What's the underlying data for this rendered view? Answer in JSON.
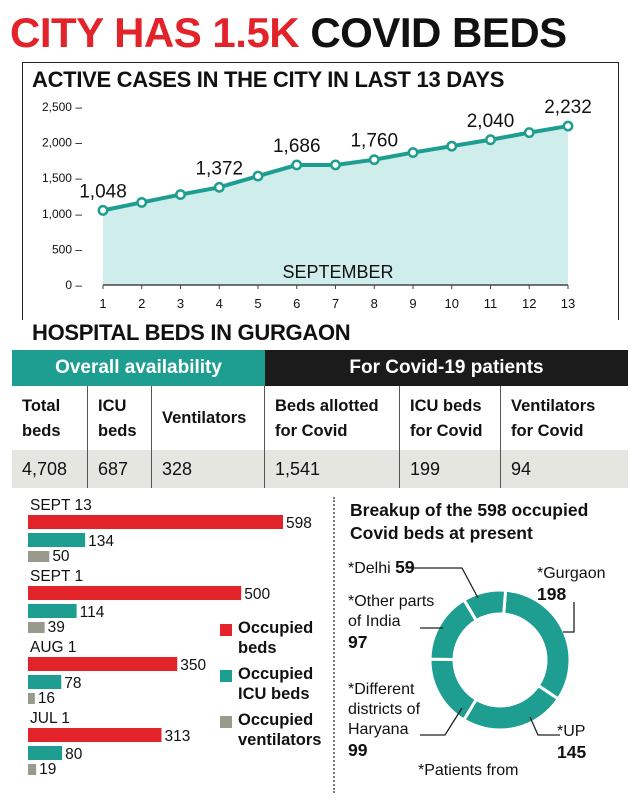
{
  "headline": {
    "part1": "CITY HAS 1.5K",
    "part2": "COVID BEDS"
  },
  "line_section": {
    "title": "ACTIVE CASES IN THE CITY IN LAST 13 DAYS",
    "month_label": "SEPTEMBER"
  },
  "beds_section": {
    "title": "HOSPITAL BEDS IN GURGAON",
    "left_header": "Overall availability",
    "right_header": "For Covid-19 patients",
    "columns": [
      {
        "head1": "Total",
        "head2": "beds",
        "value": "4,708"
      },
      {
        "head1": "ICU",
        "head2": "beds",
        "value": "687"
      },
      {
        "head1": "Ventilators",
        "head2": "",
        "value": "328"
      },
      {
        "head1": "Beds allotted",
        "head2": "for Covid",
        "value": "1,541"
      },
      {
        "head1": "ICU beds",
        "head2": "for Covid",
        "value": "199"
      },
      {
        "head1": "Ventilators",
        "head2": "for Covid",
        "value": "94"
      }
    ]
  },
  "legend": {
    "occupied_beds": "Occupied beds",
    "occupied_icu": "Occupied ICU beds",
    "occupied_vent": "Occupied ventilators"
  },
  "pie_section": {
    "title_line1": "Breakup of the 598 occupied",
    "title_line2": "Covid beds at present",
    "footnote": "*Patients from"
  },
  "colors": {
    "red": "#e2232a",
    "teal": "#1e9e91",
    "gray": "#9a9a8c",
    "area": "#cfeeeb",
    "line": "#1e9e91"
  },
  "chart_data": [
    {
      "type": "line",
      "title": "ACTIVE CASES IN THE CITY IN LAST 13 DAYS",
      "xlabel": "SEPTEMBER",
      "x": [
        1,
        2,
        3,
        4,
        5,
        6,
        7,
        8,
        9,
        10,
        11,
        12,
        13
      ],
      "values": [
        1048,
        1160,
        1270,
        1372,
        1530,
        1686,
        1686,
        1760,
        1860,
        1950,
        2040,
        2140,
        2232
      ],
      "labels": {
        "1": "1,048",
        "4": "1,372",
        "6": "1,686",
        "8": "1,760",
        "11": "2,040",
        "13": "2,232"
      },
      "ylim": [
        0,
        2500
      ],
      "yticks": [
        0,
        500,
        1000,
        1500,
        2000,
        2500
      ],
      "ytick_labels": [
        "0 –",
        "500 –",
        "1,000 –",
        "1,500 –",
        "2,000 –",
        "2,500 –"
      ]
    },
    {
      "type": "bar",
      "orientation": "horizontal",
      "categories": [
        "SEPT 13",
        "SEPT 1",
        "AUG 1",
        "JUL 1"
      ],
      "series": [
        {
          "name": "Occupied beds",
          "values": [
            598,
            500,
            350,
            313
          ]
        },
        {
          "name": "Occupied ICU beds",
          "values": [
            134,
            114,
            78,
            80
          ]
        },
        {
          "name": "Occupied ventilators",
          "values": [
            50,
            39,
            16,
            19
          ]
        }
      ]
    },
    {
      "type": "pie",
      "style": "donut",
      "title": "Breakup of the 598 occupied Covid beds at present",
      "slices": [
        {
          "label": "*Gurgaon",
          "value": 198
        },
        {
          "label": "*UP",
          "value": 145
        },
        {
          "label": "*Different districts of Haryana",
          "value": 99
        },
        {
          "label": "*Other parts of India",
          "value": 97
        },
        {
          "label": "*Delhi",
          "value": 59
        }
      ]
    }
  ]
}
